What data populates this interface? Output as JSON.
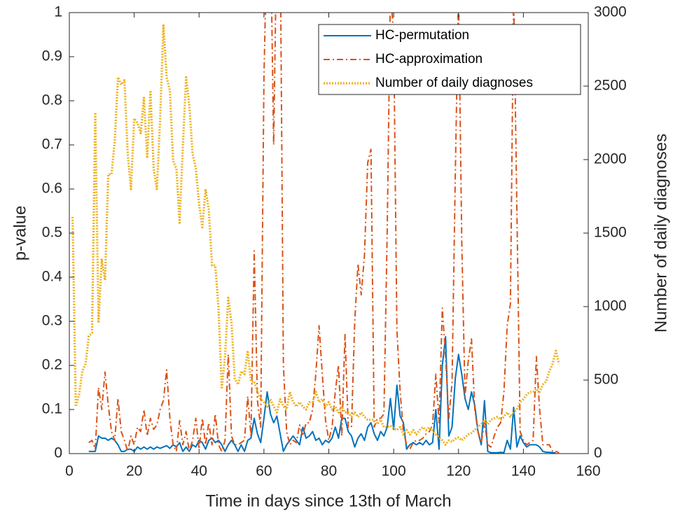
{
  "chart_data": {
    "type": "line",
    "xlabel": "Time in days since 13th of March",
    "ylabel": "p-value",
    "y2label": "Number of daily diagnoses",
    "x": [
      1,
      2,
      3,
      4,
      5,
      6,
      7,
      8,
      9,
      10,
      11,
      12,
      13,
      14,
      15,
      16,
      17,
      18,
      19,
      20,
      21,
      22,
      23,
      24,
      25,
      26,
      27,
      28,
      29,
      30,
      31,
      32,
      33,
      34,
      35,
      36,
      37,
      38,
      39,
      40,
      41,
      42,
      43,
      44,
      45,
      46,
      47,
      48,
      49,
      50,
      51,
      52,
      53,
      54,
      55,
      56,
      57,
      58,
      59,
      60,
      61,
      62,
      63,
      64,
      65,
      66,
      67,
      68,
      69,
      70,
      71,
      72,
      73,
      74,
      75,
      76,
      77,
      78,
      79,
      80,
      81,
      82,
      83,
      84,
      85,
      86,
      87,
      88,
      89,
      90,
      91,
      92,
      93,
      94,
      95,
      96,
      97,
      98,
      99,
      100,
      101,
      102,
      103,
      104,
      105,
      106,
      107,
      108,
      109,
      110,
      111,
      112,
      113,
      114,
      115,
      116,
      117,
      118,
      119,
      120,
      121,
      122,
      123,
      124,
      125,
      126,
      127,
      128,
      129,
      130,
      131,
      132,
      133,
      134,
      135,
      136,
      137,
      138,
      139,
      140,
      141,
      142,
      143,
      144,
      145,
      146,
      147,
      148,
      149,
      150,
      151
    ],
    "series": [
      {
        "name": "HC-permutation",
        "color": "#0072BD",
        "style": "solid",
        "values": [
          null,
          null,
          null,
          null,
          null,
          0.005,
          0.005,
          0.005,
          0.04,
          0.035,
          0.035,
          0.03,
          0.035,
          0.03,
          0.02,
          0.005,
          0.005,
          0.01,
          0.01,
          0.005,
          0.015,
          0.01,
          0.015,
          0.01,
          0.015,
          0.01,
          0.015,
          0.012,
          0.015,
          0.018,
          0.012,
          0.02,
          0.015,
          0.025,
          0.005,
          0.015,
          0.005,
          0.02,
          0.015,
          0.03,
          0.025,
          0.01,
          0.03,
          0.035,
          0.025,
          0.03,
          0.02,
          0.005,
          0.02,
          0.03,
          0.02,
          0.005,
          0.02,
          0.005,
          0.03,
          0.035,
          0.08,
          0.045,
          0.025,
          0.08,
          0.14,
          0.09,
          0.07,
          0.085,
          0.045,
          0.005,
          0.02,
          0.03,
          0.04,
          0.03,
          0.02,
          0.06,
          0.035,
          0.04,
          0.05,
          0.03,
          0.035,
          0.02,
          0.03,
          0.025,
          0.035,
          0.06,
          0.035,
          0.08,
          0.08,
          0.05,
          0.04,
          0.015,
          0.035,
          0.045,
          0.03,
          0.06,
          0.07,
          0.045,
          0.03,
          0.05,
          0.04,
          0.06,
          0.125,
          0.055,
          0.155,
          0.085,
          0.07,
          0.01,
          0.02,
          0.025,
          0.02,
          0.025,
          0.02,
          0.03,
          0.02,
          0.025,
          0.1,
          0.01,
          0.2,
          0.265,
          0.04,
          0.06,
          0.17,
          0.225,
          0.18,
          0.125,
          0.1,
          0.14,
          0.11,
          0.05,
          0.02,
          0.12,
          0.005,
          0.002,
          0.002,
          0.002,
          0.003,
          0.002,
          0.03,
          0.01,
          0.105,
          0.015,
          0.04,
          0.025,
          0.015,
          0.02,
          0.02,
          0.02,
          0.015,
          0.005,
          0.003,
          0.003,
          0.002,
          0.002,
          null
        ]
      },
      {
        "name": "HC-approximation",
        "color": "#D95319",
        "style": "dashdot",
        "values": [
          null,
          null,
          null,
          null,
          null,
          0.025,
          0.03,
          0.01,
          0.15,
          0.1,
          0.185,
          0.11,
          0.05,
          0.03,
          0.125,
          0.05,
          0.03,
          0.005,
          0.04,
          0.02,
          0.06,
          0.05,
          0.1,
          0.04,
          0.08,
          0.055,
          0.065,
          0.1,
          0.12,
          0.19,
          0.08,
          0.02,
          0.005,
          0.075,
          0.02,
          0.05,
          0.005,
          0.03,
          0.08,
          0.01,
          0.08,
          0.02,
          0.07,
          0.02,
          0.09,
          0.02,
          0.005,
          0.03,
          0.225,
          0.04,
          0.02,
          0.02,
          0.025,
          0.03,
          0.13,
          0.04,
          0.46,
          0.12,
          0.06,
          0.85,
          1.2,
          1.2,
          0.7,
          1.2,
          1.2,
          0.2,
          0.05,
          0.02,
          0.03,
          0.025,
          0.065,
          0.04,
          0.07,
          0.07,
          0.1,
          0.18,
          0.29,
          0.18,
          0.075,
          0.03,
          0.06,
          0.14,
          0.2,
          0.04,
          0.27,
          0.06,
          0.06,
          0.3,
          0.43,
          0.36,
          0.45,
          0.66,
          0.69,
          0.06,
          0.08,
          0.08,
          0.09,
          0.5,
          1.05,
          0.95,
          0.28,
          0.14,
          0.05,
          0.02,
          0.01,
          0.025,
          0.03,
          0.03,
          0.035,
          0.045,
          0.05,
          0.065,
          0.18,
          0.07,
          0.33,
          0.22,
          0.08,
          0.16,
          0.63,
          1.05,
          0.48,
          0.13,
          0.21,
          0.26,
          0.1,
          0.05,
          0.025,
          0.07,
          0.02,
          0.015,
          0.04,
          0.06,
          0.07,
          0.14,
          0.29,
          0.34,
          1.05,
          0.55,
          0.05,
          0.03,
          0.02,
          0.025,
          0.03,
          0.22,
          0.1,
          0.02,
          0.02,
          0.02,
          0.005,
          0.005,
          0.002
        ]
      },
      {
        "name": "Number of daily diagnoses",
        "color": "#EDB120",
        "style": "dotted",
        "axis": "y2",
        "values": [
          1610,
          320,
          400,
          560,
          610,
          800,
          820,
          2320,
          890,
          1320,
          1180,
          1900,
          1900,
          2130,
          2560,
          2510,
          2540,
          2040,
          1800,
          2280,
          2250,
          2180,
          2420,
          2010,
          2470,
          1940,
          1800,
          2280,
          2920,
          2560,
          2470,
          1990,
          1940,
          1570,
          2090,
          2560,
          2370,
          2040,
          1940,
          1700,
          1540,
          1800,
          1660,
          1280,
          1280,
          990,
          440,
          660,
          1060,
          890,
          510,
          470,
          560,
          540,
          700,
          490,
          490,
          420,
          370,
          350,
          320,
          370,
          320,
          280,
          370,
          320,
          300,
          420,
          350,
          320,
          350,
          320,
          300,
          350,
          350,
          420,
          350,
          370,
          320,
          350,
          300,
          320,
          280,
          320,
          280,
          280,
          250,
          280,
          250,
          280,
          250,
          230,
          230,
          230,
          200,
          230,
          180,
          180,
          190,
          170,
          160,
          180,
          130,
          160,
          130,
          160,
          130,
          160,
          180,
          160,
          180,
          160,
          130,
          110,
          90,
          60,
          90,
          80,
          100,
          110,
          90,
          110,
          130,
          140,
          160,
          180,
          200,
          230,
          200,
          230,
          240,
          250,
          230,
          250,
          280,
          250,
          280,
          300,
          350,
          370,
          400,
          420,
          420,
          440,
          420,
          470,
          490,
          560,
          610,
          700,
          610
        ]
      }
    ],
    "xlim": [
      0,
      160
    ],
    "xticks": [
      0,
      20,
      40,
      60,
      80,
      100,
      120,
      140,
      160
    ],
    "ylim": [
      0,
      1
    ],
    "yticks": [
      0,
      0.1,
      0.2,
      0.3,
      0.4,
      0.5,
      0.6,
      0.7,
      0.8,
      0.9,
      1
    ],
    "y2lim": [
      0,
      3000
    ],
    "y2ticks": [
      0,
      500,
      1000,
      1500,
      2000,
      2500,
      3000
    ],
    "legend": "upper right",
    "grid": false
  }
}
